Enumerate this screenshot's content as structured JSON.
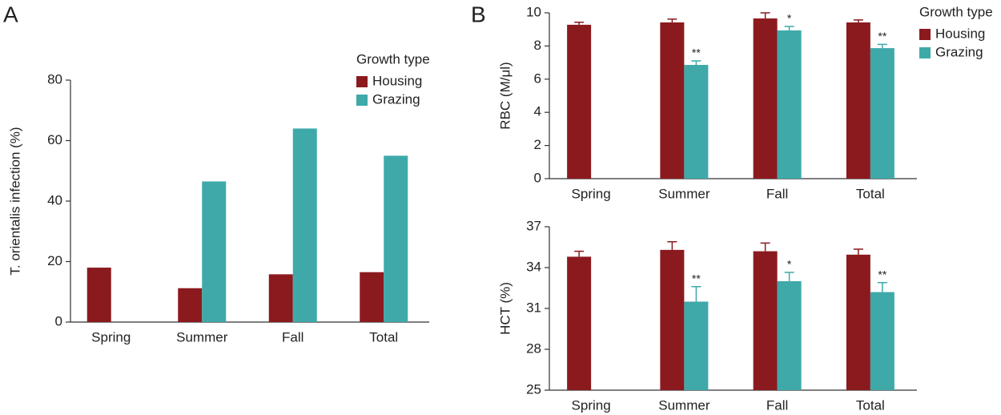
{
  "chart_data": [
    {
      "type": "bar",
      "panel_label": "A",
      "ylabel": "T. orientalis infection (%)",
      "categories": [
        "Spring",
        "Summer",
        "Fall",
        "Total"
      ],
      "series": [
        {
          "name": "Housing",
          "color": "#8b1a1f",
          "values": [
            18,
            11.2,
            15.8,
            16.5
          ]
        },
        {
          "name": "Grazing",
          "color": "#3fa9a9",
          "values": [
            null,
            46.5,
            64,
            55
          ]
        }
      ],
      "ylim": [
        0,
        80
      ],
      "yticks": [
        0,
        20,
        40,
        60,
        80
      ],
      "legend": {
        "title": "Growth type",
        "position": "upper right"
      }
    },
    {
      "type": "bar",
      "panel_label": "B",
      "ylabel": "RBC (M/μl)",
      "categories": [
        "Spring",
        "Summer",
        "Fall",
        "Total"
      ],
      "series": [
        {
          "name": "Housing",
          "color": "#8b1a1f",
          "values": [
            9.28,
            9.42,
            9.66,
            9.42
          ],
          "errors": [
            0.15,
            0.2,
            0.34,
            0.15
          ]
        },
        {
          "name": "Grazing",
          "color": "#3fa9a9",
          "values": [
            null,
            6.86,
            8.94,
            7.87
          ],
          "errors": [
            null,
            0.24,
            0.24,
            0.23
          ],
          "significance": [
            null,
            "**",
            "*",
            "**"
          ]
        }
      ],
      "ylim": [
        0,
        10
      ],
      "yticks": [
        0,
        2,
        4,
        6,
        8,
        10
      ],
      "legend": {
        "title": "Growth type",
        "position": "upper right"
      }
    },
    {
      "type": "bar",
      "ylabel": "HCT (%)",
      "categories": [
        "Spring",
        "Summer",
        "Fall",
        "Total"
      ],
      "series": [
        {
          "name": "Housing",
          "color": "#8b1a1f",
          "values": [
            34.8,
            35.3,
            35.2,
            34.95
          ],
          "errors": [
            0.4,
            0.6,
            0.6,
            0.4
          ]
        },
        {
          "name": "Grazing",
          "color": "#3fa9a9",
          "values": [
            null,
            31.5,
            33.0,
            32.2
          ],
          "errors": [
            null,
            1.1,
            0.65,
            0.7
          ],
          "significance": [
            null,
            "**",
            "*",
            "**"
          ]
        }
      ],
      "ylim": [
        25,
        37
      ],
      "yticks": [
        25,
        28,
        31,
        34,
        37
      ]
    }
  ]
}
